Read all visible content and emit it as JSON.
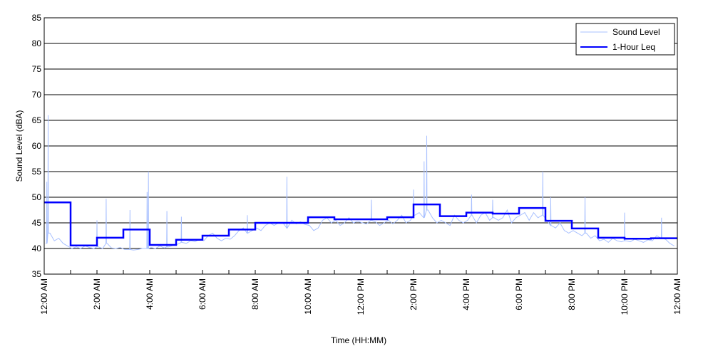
{
  "chart_data": {
    "type": "line",
    "title": "",
    "xlabel": "Time (HH:MM)",
    "ylabel": "Sound Level (dBA)",
    "xlim": [
      0,
      24
    ],
    "ylim": [
      35,
      85
    ],
    "yticks": [
      35,
      40,
      45,
      50,
      55,
      60,
      65,
      70,
      75,
      80,
      85
    ],
    "xticks_hours": [
      0,
      2,
      4,
      6,
      8,
      10,
      12,
      14,
      16,
      18,
      20,
      22,
      24
    ],
    "xtick_labels": [
      "12:00 AM",
      "2:00 AM",
      "4:00 AM",
      "6:00 AM",
      "8:00 AM",
      "10:00 AM",
      "12:00 PM",
      "2:00 PM",
      "4:00 PM",
      "6:00 PM",
      "8:00 PM",
      "10:00 PM",
      "12:00 AM"
    ],
    "grid": "horizontal",
    "legend_position": "top-right",
    "series": [
      {
        "name": "Sound Level",
        "color": "#a8c0ff",
        "sample_interval_hours": 0.1666667,
        "values": [
          41,
          43,
          41.5,
          42,
          41,
          40.5,
          40,
          40.3,
          40,
          40.5,
          40.2,
          40,
          40.3,
          40,
          41,
          40.1,
          40,
          40.2,
          39.8,
          39.8,
          39.7,
          39.8,
          40,
          40,
          40.2,
          40,
          40.5,
          40.1,
          40.3,
          40.6,
          40.8,
          41.2,
          41,
          41.5,
          41.3,
          41.8,
          41.5,
          42.5,
          43,
          42,
          41.5,
          42,
          41.8,
          42.5,
          43.5,
          44,
          43,
          43.5,
          44,
          43.5,
          44.5,
          45,
          44.5,
          45,
          45,
          44,
          45.5,
          44.8,
          45.2,
          44.7,
          44.5,
          43.5,
          44,
          45.5,
          46,
          45,
          45.5,
          44.5,
          45,
          46,
          45,
          45.3,
          45,
          44.8,
          45.5,
          45.2,
          44.5,
          45,
          45.5,
          44.8,
          45.5,
          46.5,
          45,
          45.5,
          46.5,
          47,
          46,
          47.5,
          46,
          45,
          45.5,
          45,
          44.5,
          46.5,
          45.5,
          45,
          45.5,
          46.5,
          45,
          46.5,
          47,
          45.5,
          46,
          45.5,
          46,
          47.5,
          45,
          46,
          46.5,
          47,
          45.5,
          47,
          46,
          46.5,
          45.5,
          44.5,
          44,
          45,
          43.5,
          43,
          43.5,
          43,
          42.5,
          43,
          42,
          42.5,
          41.5,
          41.8,
          41.2,
          42,
          41.5,
          41.3,
          41.5,
          41.3,
          41.8,
          41.5,
          41.2,
          41.7,
          41.5,
          42.5,
          42,
          41.8,
          41,
          40.5
        ],
        "peaks": [
          [
            0.1,
            53
          ],
          [
            0.15,
            66
          ],
          [
            2.0,
            45.5
          ],
          [
            2.35,
            49.7
          ],
          [
            3.25,
            47.5
          ],
          [
            3.9,
            51
          ],
          [
            3.95,
            55
          ],
          [
            4.65,
            47.3
          ],
          [
            5.2,
            46.2
          ],
          [
            7.7,
            46.5
          ],
          [
            9.2,
            54
          ],
          [
            12.4,
            49.5
          ],
          [
            14.0,
            51.5
          ],
          [
            14.4,
            57
          ],
          [
            14.5,
            62
          ],
          [
            16.2,
            50.5
          ],
          [
            17.0,
            49.5
          ],
          [
            18.9,
            55
          ],
          [
            19.2,
            50
          ],
          [
            20.5,
            50
          ],
          [
            22.0,
            47
          ],
          [
            23.4,
            46
          ]
        ]
      },
      {
        "name": "1-Hour Leq",
        "color": "#0000ff",
        "step": "hourly",
        "values": [
          49.0,
          40.6,
          42.1,
          43.7,
          40.7,
          41.7,
          42.5,
          43.7,
          45.0,
          45.0,
          46.1,
          45.7,
          45.7,
          46.1,
          48.6,
          46.3,
          47.0,
          46.8,
          47.9,
          45.4,
          43.9,
          42.1,
          41.9,
          42.0
        ]
      }
    ]
  }
}
